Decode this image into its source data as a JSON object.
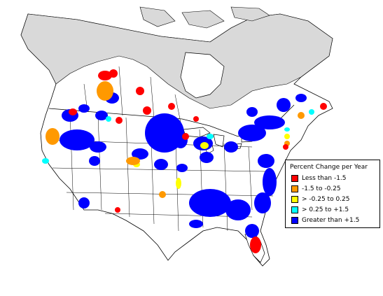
{
  "legend": {
    "title": "Percent Change per Year",
    "items": [
      {
        "label": "Less than -1.5",
        "color": "#ff0000"
      },
      {
        "label": "-1.5 to -0.25",
        "color": "#ff9900"
      },
      {
        "label": "> -0.25 to 0.25",
        "color": "#ffff00"
      },
      {
        "label": "> 0.25 to +1.5",
        "color": "#00ffff"
      },
      {
        "label": "Greater than +1.5",
        "color": "#0000ff"
      }
    ]
  },
  "colors": {
    "land": "#ffffff",
    "no_data_land": "#d9d9d9",
    "boundary": "#000000",
    "background": "#ffffff"
  }
}
